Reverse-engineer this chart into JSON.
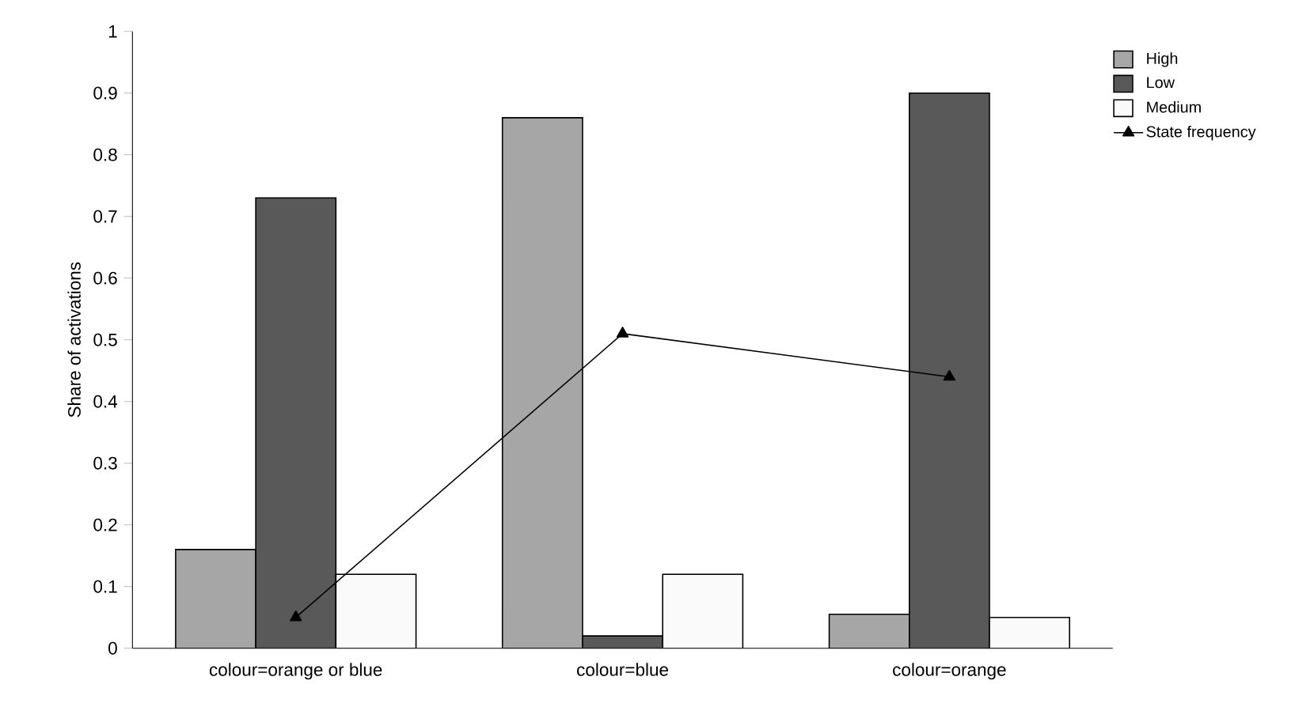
{
  "chart_data": {
    "type": "bar",
    "ylabel": "Share of activations",
    "categories": [
      "colour=orange or blue",
      "colour=blue",
      "colour=orange"
    ],
    "series": [
      {
        "name": "High",
        "color": "#a6a6a6",
        "values": [
          0.16,
          0.86,
          0.055
        ]
      },
      {
        "name": "Low",
        "color": "#595959",
        "values": [
          0.73,
          0.02,
          0.9
        ]
      },
      {
        "name": "Medium",
        "color": "#fafafa",
        "values": [
          0.12,
          0.12,
          0.05
        ]
      },
      {
        "name": "State frequency",
        "type": "line",
        "color": "#000000",
        "marker": "triangle",
        "values": [
          0.05,
          0.51,
          0.44
        ]
      }
    ],
    "ylim": [
      0,
      1
    ],
    "yticks": [
      0,
      0.1,
      0.2,
      0.3,
      0.4,
      0.5,
      0.6,
      0.7,
      0.8,
      0.9,
      1
    ],
    "grid": false,
    "legend": "right"
  }
}
